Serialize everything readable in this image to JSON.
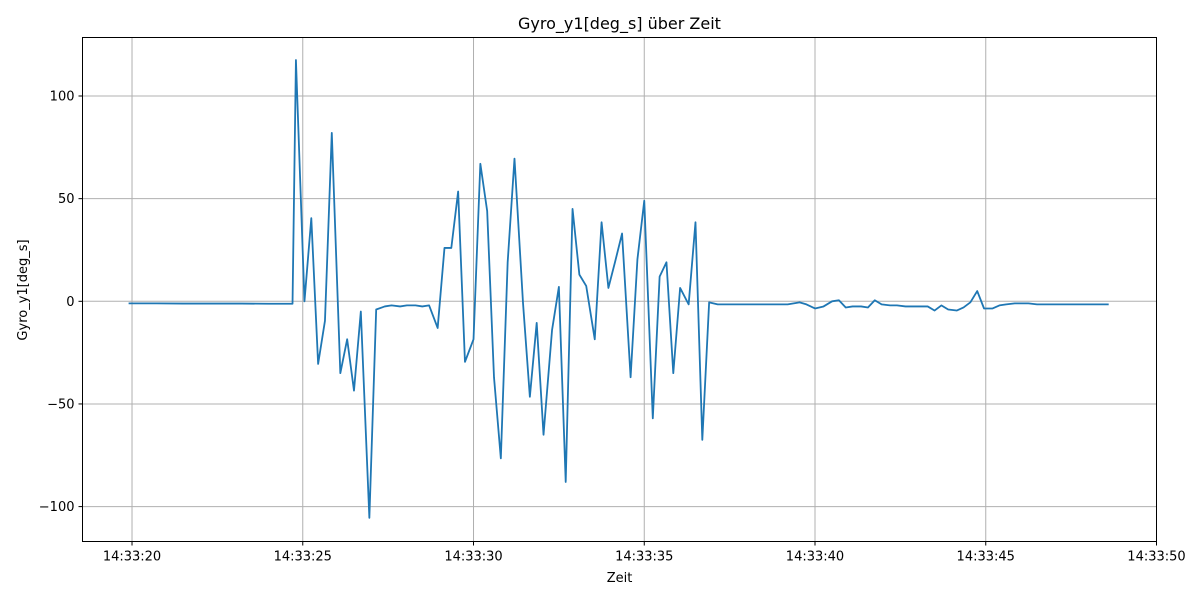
{
  "chart_data": {
    "type": "line",
    "title": "Gyro_y1[deg_s] über Zeit",
    "xlabel": "Zeit",
    "ylabel": "Gyro_y1[deg_s]",
    "x_unit": "seconds past 14:33:00",
    "xlim": [
      18.55,
      50.0
    ],
    "ylim": [
      -117.0,
      128.5
    ],
    "grid": true,
    "x_ticks": [
      {
        "value": 20,
        "label": "14:33:20"
      },
      {
        "value": 25,
        "label": "14:33:25"
      },
      {
        "value": 30,
        "label": "14:33:30"
      },
      {
        "value": 35,
        "label": "14:33:35"
      },
      {
        "value": 40,
        "label": "14:33:40"
      },
      {
        "value": 45,
        "label": "14:33:45"
      },
      {
        "value": 50,
        "label": "14:33:50"
      }
    ],
    "y_ticks": [
      {
        "value": 100,
        "label": "100"
      },
      {
        "value": 50,
        "label": "50"
      },
      {
        "value": 0,
        "label": "0"
      },
      {
        "value": -50,
        "label": "−50"
      },
      {
        "value": -100,
        "label": "−100"
      }
    ],
    "series": [
      {
        "color": "#1f77b4",
        "points": [
          [
            19.9,
            -1.0
          ],
          [
            20.7,
            -1.0
          ],
          [
            21.5,
            -1.1
          ],
          [
            22.4,
            -1.1
          ],
          [
            23.2,
            -1.1
          ],
          [
            24.0,
            -1.2
          ],
          [
            24.7,
            -1.2
          ],
          [
            24.8,
            117.5
          ],
          [
            25.05,
            0.0
          ],
          [
            25.25,
            40.5
          ],
          [
            25.45,
            -30.5
          ],
          [
            25.65,
            -9.5
          ],
          [
            25.85,
            82.0
          ],
          [
            26.1,
            -35.0
          ],
          [
            26.3,
            -18.5
          ],
          [
            26.5,
            -43.5
          ],
          [
            26.7,
            -5.0
          ],
          [
            26.95,
            -105.5
          ],
          [
            27.15,
            -4.0
          ],
          [
            27.4,
            -2.5
          ],
          [
            27.6,
            -2.0
          ],
          [
            27.85,
            -2.5
          ],
          [
            28.05,
            -2.0
          ],
          [
            28.3,
            -2.0
          ],
          [
            28.5,
            -2.5
          ],
          [
            28.7,
            -2.0
          ],
          [
            28.95,
            -13.0
          ],
          [
            29.15,
            26.0
          ],
          [
            29.35,
            26.0
          ],
          [
            29.55,
            53.5
          ],
          [
            29.75,
            -29.5
          ],
          [
            30.0,
            -18.5
          ],
          [
            30.2,
            67.0
          ],
          [
            30.4,
            44.0
          ],
          [
            30.6,
            -37.0
          ],
          [
            30.8,
            -76.5
          ],
          [
            31.0,
            19.0
          ],
          [
            31.2,
            69.5
          ],
          [
            31.45,
            -1.0
          ],
          [
            31.65,
            -46.5
          ],
          [
            31.85,
            -10.5
          ],
          [
            32.05,
            -65.0
          ],
          [
            32.3,
            -14.0
          ],
          [
            32.5,
            7.0
          ],
          [
            32.7,
            -88.0
          ],
          [
            32.9,
            45.0
          ],
          [
            33.1,
            13.0
          ],
          [
            33.3,
            7.5
          ],
          [
            33.55,
            -18.5
          ],
          [
            33.75,
            38.5
          ],
          [
            33.95,
            6.5
          ],
          [
            34.15,
            19.5
          ],
          [
            34.35,
            33.0
          ],
          [
            34.6,
            -37.0
          ],
          [
            34.8,
            20.5
          ],
          [
            35.0,
            49.0
          ],
          [
            35.25,
            -57.0
          ],
          [
            35.45,
            12.0
          ],
          [
            35.65,
            19.0
          ],
          [
            35.85,
            -35.0
          ],
          [
            36.05,
            6.5
          ],
          [
            36.3,
            -1.5
          ],
          [
            36.5,
            38.5
          ],
          [
            36.7,
            -67.5
          ],
          [
            36.9,
            -0.5
          ],
          [
            37.15,
            -1.5
          ],
          [
            37.4,
            -1.5
          ],
          [
            38.0,
            -1.5
          ],
          [
            38.6,
            -1.5
          ],
          [
            39.2,
            -1.5
          ],
          [
            39.55,
            -0.5
          ],
          [
            39.75,
            -1.5
          ],
          [
            40.0,
            -3.5
          ],
          [
            40.25,
            -2.5
          ],
          [
            40.5,
            0.0
          ],
          [
            40.7,
            0.5
          ],
          [
            40.9,
            -3.0
          ],
          [
            41.1,
            -2.5
          ],
          [
            41.35,
            -2.5
          ],
          [
            41.55,
            -3.0
          ],
          [
            41.75,
            0.5
          ],
          [
            41.95,
            -1.5
          ],
          [
            42.2,
            -2.0
          ],
          [
            42.4,
            -2.0
          ],
          [
            42.65,
            -2.5
          ],
          [
            42.85,
            -2.5
          ],
          [
            43.1,
            -2.5
          ],
          [
            43.3,
            -2.5
          ],
          [
            43.5,
            -4.5
          ],
          [
            43.7,
            -2.0
          ],
          [
            43.9,
            -4.0
          ],
          [
            44.15,
            -4.5
          ],
          [
            44.35,
            -3.0
          ],
          [
            44.55,
            -0.5
          ],
          [
            44.75,
            5.0
          ],
          [
            44.95,
            -3.5
          ],
          [
            45.2,
            -3.5
          ],
          [
            45.4,
            -2.0
          ],
          [
            45.6,
            -1.5
          ],
          [
            45.85,
            -1.0
          ],
          [
            46.05,
            -1.0
          ],
          [
            46.25,
            -1.0
          ],
          [
            46.5,
            -1.5
          ],
          [
            47.0,
            -1.5
          ],
          [
            47.5,
            -1.5
          ],
          [
            48.0,
            -1.5
          ],
          [
            48.6,
            -1.5
          ]
        ]
      }
    ]
  }
}
